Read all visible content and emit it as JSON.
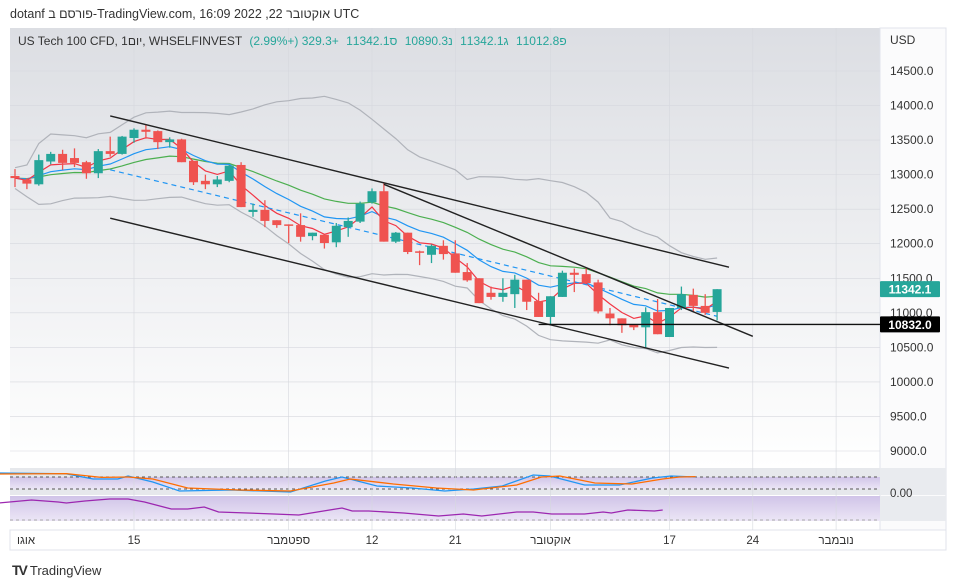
{
  "caption": "dotanf פורסם ב-TradingView.com, 16:09 2022 ,22 אוקטובר UTC",
  "legend": {
    "symbol": "US Tech 100 CFD, 1יום, WHSELFINVEST",
    "open_label": "פ",
    "open": "11012.8",
    "high_label": "ג",
    "high": "11342.1",
    "low_label": "נ",
    "low": "10890.3",
    "close_label": "ס",
    "close": "11342.1",
    "change": "+329.3 (+2.99%)"
  },
  "currency": "USD",
  "price_labels": [
    "14500.0",
    "14000.0",
    "13500.0",
    "13000.0",
    "12500.0",
    "12000.0",
    "11500.0",
    "11000.0",
    "10500.0",
    "10000.0",
    "9500.0",
    "9000.0"
  ],
  "price_levels": [
    14500,
    14000,
    13500,
    13000,
    12500,
    12000,
    11500,
    11000,
    10500,
    10000,
    9500,
    9000
  ],
  "last_price": {
    "label": "11342.1",
    "value": 11342.1,
    "color": "#26a69a"
  },
  "hline": {
    "label": "10832.0",
    "value": 10832.0
  },
  "osc_label": "0.00",
  "time_labels": [
    {
      "label": "אוגו",
      "index": 0
    },
    {
      "label": "15",
      "index": 10
    },
    {
      "label": "ספטמבר",
      "index": 23
    },
    {
      "label": "12",
      "index": 30
    },
    {
      "label": "21",
      "index": 37
    },
    {
      "label": "אוקטובר",
      "index": 45
    },
    {
      "label": "17",
      "index": 55
    },
    {
      "label": "24",
      "index": 62
    },
    {
      "label": "נובמבר",
      "index": 69
    }
  ],
  "brand": "TradingView",
  "colors": {
    "up": "#26a69a",
    "down": "#ef5350",
    "ema_fast": "#f23645",
    "ema_mid": "#2196f3",
    "ema_slow": "#4caf50",
    "bb": "#b0b3ba"
  },
  "candles": [
    [
      12980,
      13080,
      12820,
      12950
    ],
    [
      12930,
      12950,
      12790,
      12870
    ],
    [
      12860,
      13290,
      12840,
      13210
    ],
    [
      13190,
      13330,
      13150,
      13300
    ],
    [
      13300,
      13360,
      13070,
      13170
    ],
    [
      13240,
      13380,
      13110,
      13170
    ],
    [
      13180,
      13200,
      12940,
      13020
    ],
    [
      13020,
      13370,
      12950,
      13340
    ],
    [
      13340,
      13550,
      13260,
      13300
    ],
    [
      13300,
      13560,
      13290,
      13550
    ],
    [
      13530,
      13670,
      13460,
      13650
    ],
    [
      13650,
      13720,
      13520,
      13620
    ],
    [
      13630,
      13640,
      13370,
      13470
    ],
    [
      13470,
      13540,
      13390,
      13510
    ],
    [
      13510,
      13520,
      13180,
      13180
    ],
    [
      13200,
      13200,
      12850,
      12890
    ],
    [
      12910,
      13000,
      12790,
      12860
    ],
    [
      12860,
      12980,
      12820,
      12930
    ],
    [
      12910,
      13140,
      12890,
      13130
    ],
    [
      13140,
      13180,
      12530,
      12530
    ],
    [
      12460,
      12580,
      12390,
      12490
    ],
    [
      12490,
      12630,
      12240,
      12330
    ],
    [
      12340,
      12340,
      12230,
      12270
    ],
    [
      12280,
      12280,
      12010,
      12260
    ],
    [
      12270,
      12440,
      12030,
      12100
    ],
    [
      12110,
      12160,
      12050,
      12160
    ],
    [
      12130,
      12130,
      11930,
      12010
    ],
    [
      12020,
      12300,
      11950,
      12260
    ],
    [
      12240,
      12380,
      12100,
      12330
    ],
    [
      12320,
      12610,
      12300,
      12580
    ],
    [
      12600,
      12800,
      12580,
      12760
    ],
    [
      12760,
      12880,
      12030,
      12030
    ],
    [
      12030,
      12170,
      12010,
      12160
    ],
    [
      12160,
      12160,
      11850,
      11880
    ],
    [
      11890,
      11900,
      11690,
      11870
    ],
    [
      11840,
      11990,
      11720,
      11970
    ],
    [
      11970,
      12050,
      11770,
      11850
    ],
    [
      11860,
      12050,
      11580,
      11580
    ],
    [
      11590,
      11720,
      11450,
      11470
    ],
    [
      11500,
      11500,
      11140,
      11140
    ],
    [
      11290,
      11380,
      11190,
      11230
    ],
    [
      11230,
      11500,
      11160,
      11290
    ],
    [
      11270,
      11550,
      11070,
      11480
    ],
    [
      11480,
      11480,
      11040,
      11160
    ],
    [
      11170,
      11290,
      10940,
      10940
    ],
    [
      10940,
      11240,
      10820,
      11240
    ],
    [
      11230,
      11610,
      11230,
      11580
    ],
    [
      11580,
      11640,
      11300,
      11550
    ],
    [
      11560,
      11660,
      11430,
      11430
    ],
    [
      11440,
      11480,
      10990,
      11020
    ],
    [
      10990,
      11070,
      10820,
      10920
    ],
    [
      10920,
      10920,
      10710,
      10820
    ],
    [
      10830,
      10830,
      10750,
      10790
    ],
    [
      10790,
      11080,
      10490,
      11010
    ],
    [
      11010,
      11200,
      10690,
      10690
    ],
    [
      10650,
      11070,
      10650,
      11070
    ],
    [
      11070,
      11380,
      11040,
      11270
    ],
    [
      11260,
      11350,
      11020,
      11100
    ],
    [
      11100,
      11270,
      10970,
      11000
    ],
    [
      11012.8,
      11342.1,
      10890.3,
      11342.1
    ]
  ],
  "trendlines": [
    {
      "from": [
        8,
        13850
      ],
      "to": [
        60,
        11660
      ]
    },
    {
      "from": [
        8,
        12370
      ],
      "to": [
        60,
        10200
      ]
    },
    {
      "from": [
        31,
        12860
      ],
      "to": [
        62,
        10660
      ]
    }
  ],
  "regression": {
    "from": [
      8,
      13070
    ],
    "to": [
      59,
      10950
    ]
  },
  "stoch_k": [
    [
      -0.8,
      100
    ],
    [
      2.5,
      96
    ],
    [
      3.8,
      70
    ],
    [
      5,
      70
    ],
    [
      5.5,
      85
    ],
    [
      6.7,
      55
    ],
    [
      8,
      10
    ],
    [
      10.5,
      15
    ],
    [
      13.4,
      5
    ],
    [
      15.1,
      60
    ],
    [
      15.9,
      80
    ],
    [
      17.6,
      35
    ],
    [
      19.3,
      25
    ],
    [
      20.9,
      10
    ],
    [
      22.3,
      20
    ],
    [
      23.7,
      35
    ],
    [
      25.2,
      90
    ],
    [
      26,
      85
    ],
    [
      27.7,
      40
    ],
    [
      29.4,
      40
    ],
    [
      31,
      75
    ],
    [
      31.9,
      85
    ],
    [
      33.1,
      80
    ]
  ],
  "stoch_d": [
    [
      -0.8,
      95
    ],
    [
      2.5,
      97
    ],
    [
      4.2,
      78
    ],
    [
      5.5,
      80
    ],
    [
      6.7,
      70
    ],
    [
      8.4,
      25
    ],
    [
      10.9,
      15
    ],
    [
      13.4,
      10
    ],
    [
      15.5,
      50
    ],
    [
      16.3,
      70
    ],
    [
      18.4,
      45
    ],
    [
      20.5,
      25
    ],
    [
      22.3,
      15
    ],
    [
      24.4,
      40
    ],
    [
      25.6,
      80
    ],
    [
      26.5,
      85
    ],
    [
      28.2,
      50
    ],
    [
      30,
      45
    ],
    [
      31.5,
      70
    ],
    [
      32.3,
      80
    ],
    [
      33.1,
      82
    ]
  ],
  "rsi": [
    [
      -0.8,
      76
    ],
    [
      0.8,
      88
    ],
    [
      2.1,
      80
    ],
    [
      2.5,
      76
    ],
    [
      3.4,
      84
    ],
    [
      4.6,
      92
    ],
    [
      5.5,
      92
    ],
    [
      6.3,
      80
    ],
    [
      7.6,
      52
    ],
    [
      8.4,
      52
    ],
    [
      9.2,
      60
    ],
    [
      9.9,
      40
    ],
    [
      11.3,
      36
    ],
    [
      12.6,
      32
    ],
    [
      13.8,
      28
    ],
    [
      14.7,
      40
    ],
    [
      15.9,
      56
    ],
    [
      16.4,
      44
    ],
    [
      17.2,
      44
    ],
    [
      18.9,
      36
    ],
    [
      20.6,
      24
    ],
    [
      21.8,
      32
    ],
    [
      22.7,
      24
    ],
    [
      24.4,
      40
    ],
    [
      25.2,
      40
    ],
    [
      26.1,
      32
    ],
    [
      27.7,
      32
    ],
    [
      28.6,
      40
    ],
    [
      29,
      36
    ],
    [
      29.8,
      48
    ],
    [
      31.1,
      44
    ],
    [
      31.5,
      48
    ]
  ]
}
